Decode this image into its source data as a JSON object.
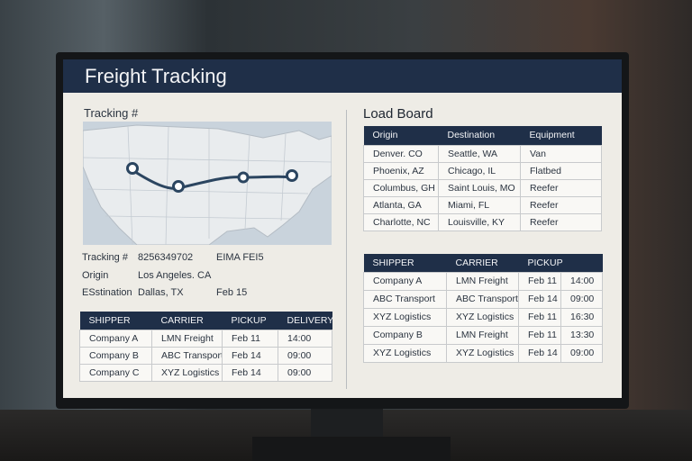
{
  "header": {
    "title": "Freight Tracking"
  },
  "tracking": {
    "label": "Tracking #",
    "details": [
      {
        "label": "Tracking #",
        "value": "8256349702",
        "extra": "EIMA FEI5"
      },
      {
        "label": "Origin",
        "value": "Los Angeles. CA"
      },
      {
        "label": "ESstination",
        "value": "Dallas, TX",
        "extra": "Feb 15"
      }
    ]
  },
  "shipments_table": {
    "columns": [
      "SHIPPER",
      "CARRIER",
      "PICKUP",
      "DELIVERY"
    ],
    "rows": [
      [
        "Company A",
        "LMN Freight",
        "Feb 11",
        "14:00"
      ],
      [
        "Company B",
        "ABC Transport",
        "Feb 14",
        "09:00"
      ],
      [
        "Company C",
        "XYZ Logistics",
        "Feb 14",
        "09:00"
      ]
    ]
  },
  "load_board": {
    "title": "Load Board",
    "columns": [
      "Origin",
      "Destination",
      "Equipment"
    ],
    "rows": [
      [
        "Denver. CO",
        "Seattle, WA",
        "Van"
      ],
      [
        "Phoenix, AZ",
        "Chicago, IL",
        "Flatbed"
      ],
      [
        "Columbus, GH",
        "Saint Louis, MO",
        "Reefer"
      ],
      [
        "Atlanta, GA",
        "Miami, FL",
        "Reefer"
      ],
      [
        "Charlotte, NC",
        "Louisville, KY",
        "Reefer"
      ]
    ]
  },
  "carrier_table": {
    "columns": [
      "SHIPPER",
      "CARRIER",
      "PICKUP"
    ],
    "rows": [
      [
        "Company A",
        "LMN Freight",
        "Feb 11",
        "14:00"
      ],
      [
        "ABC Transport",
        "ABC Transport",
        "Feb 14",
        "09:00"
      ],
      [
        "XYZ Logistics",
        "XYZ Logistics",
        "Feb 11",
        "16:30"
      ],
      [
        "Company B",
        "LMN Freight",
        "Feb 11",
        "13:30"
      ],
      [
        "XYZ Logistics",
        "XYZ Logistics",
        "Feb 14",
        "09:00"
      ]
    ]
  }
}
